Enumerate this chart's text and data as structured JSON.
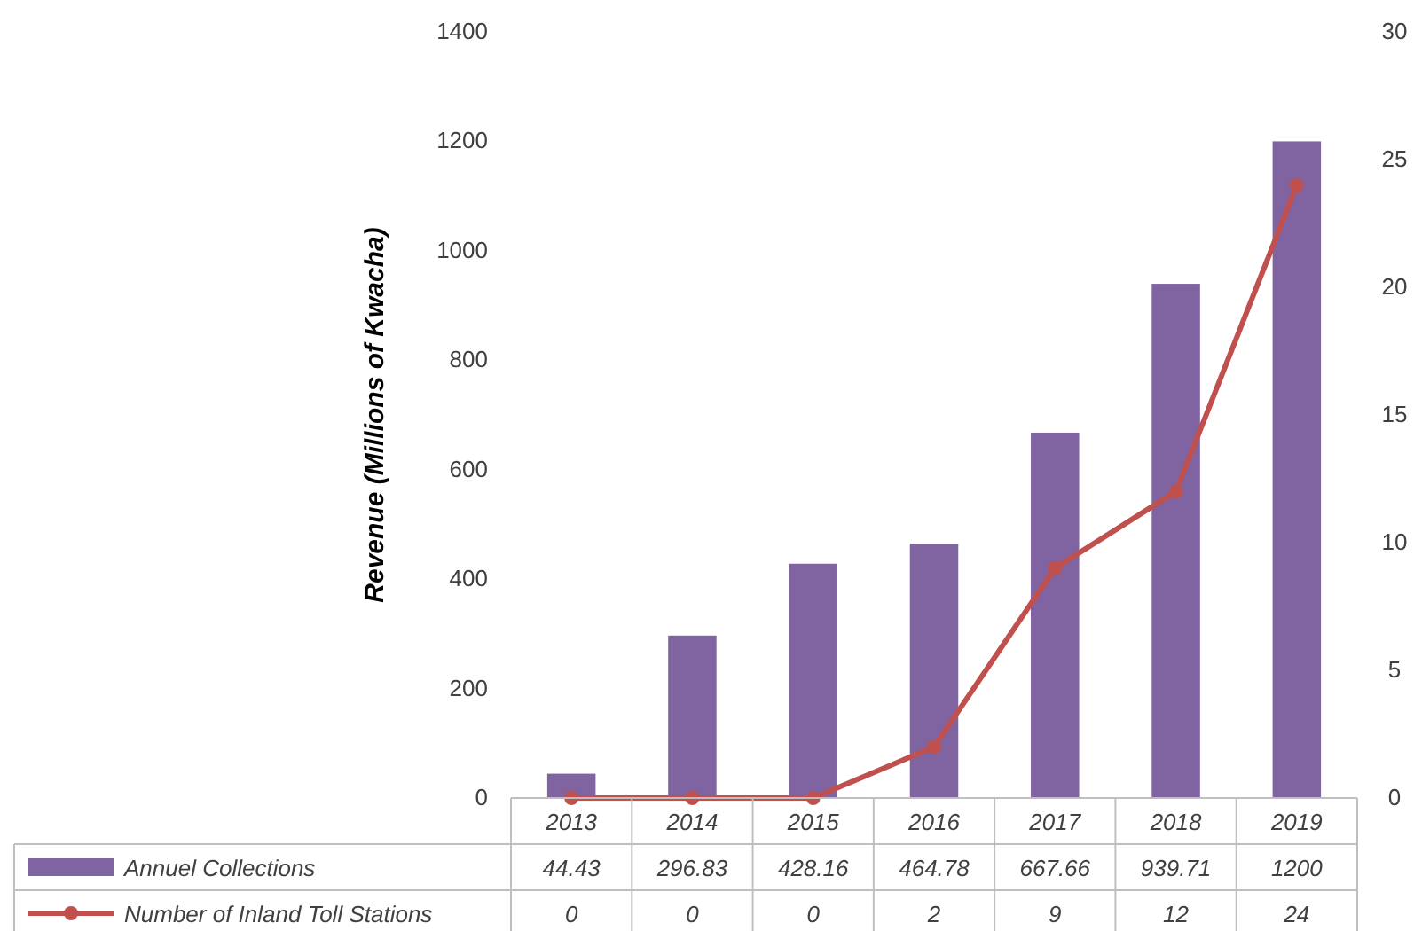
{
  "chart_data": {
    "type": "bar",
    "ylabel": "Revenue (Millions of Kwacha)",
    "categories": [
      "2013",
      "2014",
      "2015",
      "2016",
      "2017",
      "2018",
      "2019"
    ],
    "series": [
      {
        "name": "Annuel Collections",
        "color": "#8064a2",
        "values": [
          44.43,
          296.83,
          428.16,
          464.78,
          667.66,
          939.71,
          1200
        ]
      },
      {
        "name": "Number of Inland Toll Stations",
        "type": "line",
        "axis": "y2",
        "color": "#c0504d",
        "marker": "circle",
        "values": [
          0,
          0,
          0,
          2,
          9,
          12,
          24
        ]
      }
    ],
    "ylim": [
      0,
      1400
    ],
    "yticks": [
      0,
      200,
      400,
      600,
      800,
      1000,
      1200,
      1400
    ],
    "y2lim": [
      0,
      30
    ],
    "y2ticks": [
      0,
      5,
      10,
      15,
      20,
      25,
      30
    ],
    "data_labels": true,
    "legend": "bottom",
    "grid": false
  }
}
